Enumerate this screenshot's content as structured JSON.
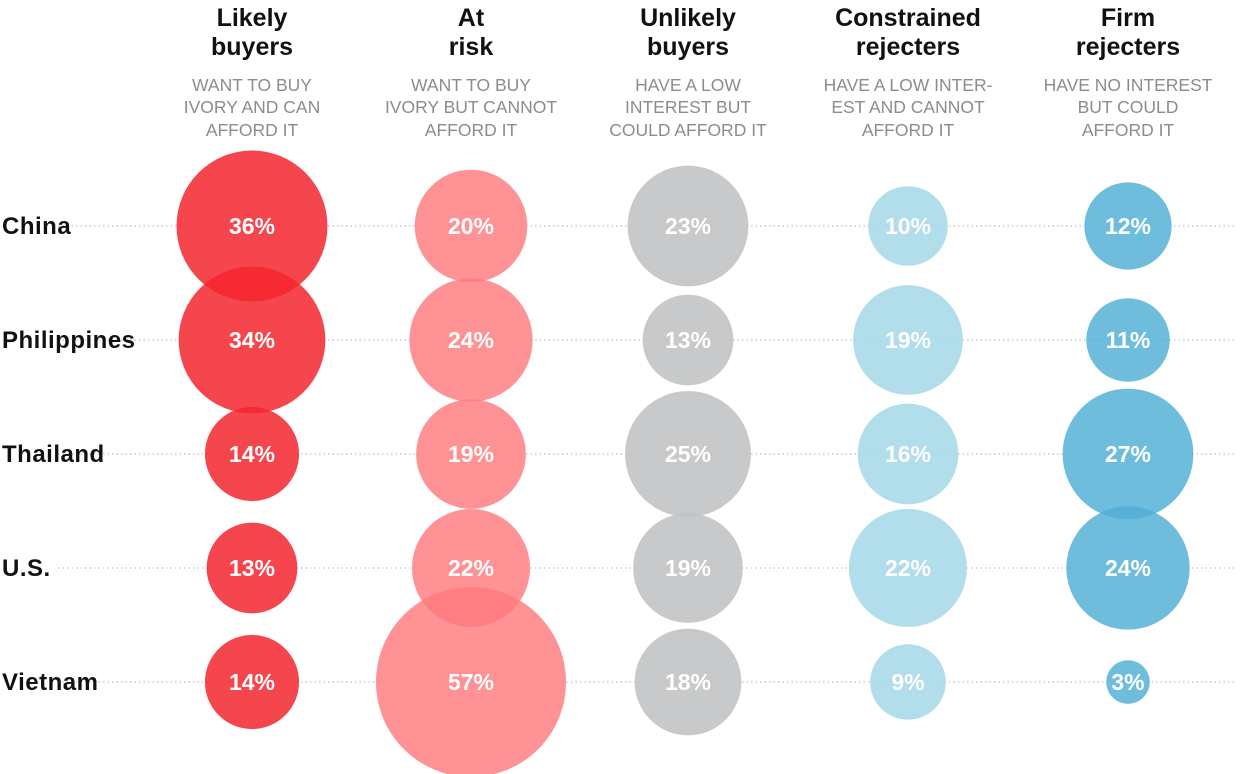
{
  "chart_data": {
    "type": "bubble-matrix",
    "columns": [
      {
        "title": [
          "Likely",
          "buyers"
        ],
        "subtitle": [
          "WANT TO BUY",
          "IVORY AND CAN",
          "AFFORD IT"
        ],
        "color": "#f5262e",
        "opacity": 0.85
      },
      {
        "title": [
          "At",
          "risk"
        ],
        "subtitle": [
          "WANT TO BUY",
          "IVORY BUT CANNOT",
          "AFFORD IT"
        ],
        "color": "#ff7a7e",
        "opacity": 0.82
      },
      {
        "title": [
          "Unlikely",
          "buyers"
        ],
        "subtitle": [
          "HAVE A LOW",
          "INTEREST BUT",
          "COULD AFFORD IT"
        ],
        "color": "#bdbfc1",
        "opacity": 0.85
      },
      {
        "title": [
          "Constrained",
          "rejecters"
        ],
        "subtitle": [
          "HAVE A LOW INTER-",
          "EST AND CANNOT",
          "AFFORD IT"
        ],
        "color": "#a4d7e8",
        "opacity": 0.85
      },
      {
        "title": [
          "Firm",
          "rejecters"
        ],
        "subtitle": [
          "HAVE NO INTEREST",
          "BUT COULD",
          "AFFORD IT"
        ],
        "color": "#4faed6",
        "opacity": 0.82
      }
    ],
    "rows": [
      "China",
      "Philippines",
      "Thailand",
      "U.S.",
      "Vietnam"
    ],
    "values": [
      [
        36,
        20,
        23,
        10,
        12
      ],
      [
        34,
        24,
        13,
        19,
        11
      ],
      [
        14,
        19,
        25,
        16,
        27
      ],
      [
        13,
        22,
        19,
        22,
        24
      ],
      [
        14,
        57,
        18,
        9,
        3
      ]
    ],
    "value_suffix": "%"
  }
}
